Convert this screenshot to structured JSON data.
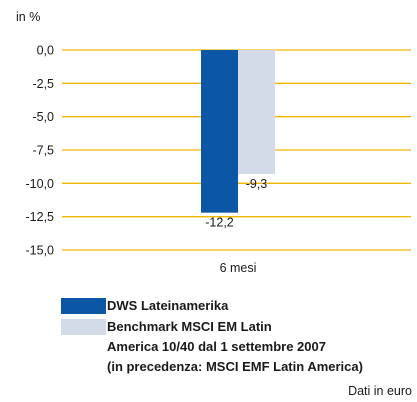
{
  "chart_data": {
    "type": "bar",
    "ylabel": "in %",
    "xlabel": "",
    "ylim": [
      -15,
      0
    ],
    "yticks": [
      "0,0",
      "-2,5",
      "-5,0",
      "-7,5",
      "-10,0",
      "-12,5",
      "-15,0"
    ],
    "ytick_values": [
      0,
      -2.5,
      -5,
      -7.5,
      -10,
      -12.5,
      -15
    ],
    "categories": [
      "6 mesi"
    ],
    "grid": true,
    "series": [
      {
        "name": "DWS Lateinamerika",
        "values": [
          -12.2
        ],
        "labels": [
          "-12,2"
        ],
        "color": "#0b57a6"
      },
      {
        "name": "Benchmark MSCI EM Latin America 10/40 dal 1 settembre 2007 (in precedenza: MSCI EMF Latin America)",
        "values": [
          -9.3
        ],
        "labels": [
          "-9,3"
        ],
        "color": "#d3dbe9"
      }
    ],
    "grid_color": "#f2b705"
  },
  "legend": {
    "item1_label": "DWS Lateinamerika",
    "item2_line1": "Benchmark MSCI EM Latin",
    "item2_line2": "America 10/40 dal 1 settembre 2007",
    "item2_line3": "(in precedenza: MSCI EMF Latin America)"
  },
  "source_note": "Dati in euro"
}
